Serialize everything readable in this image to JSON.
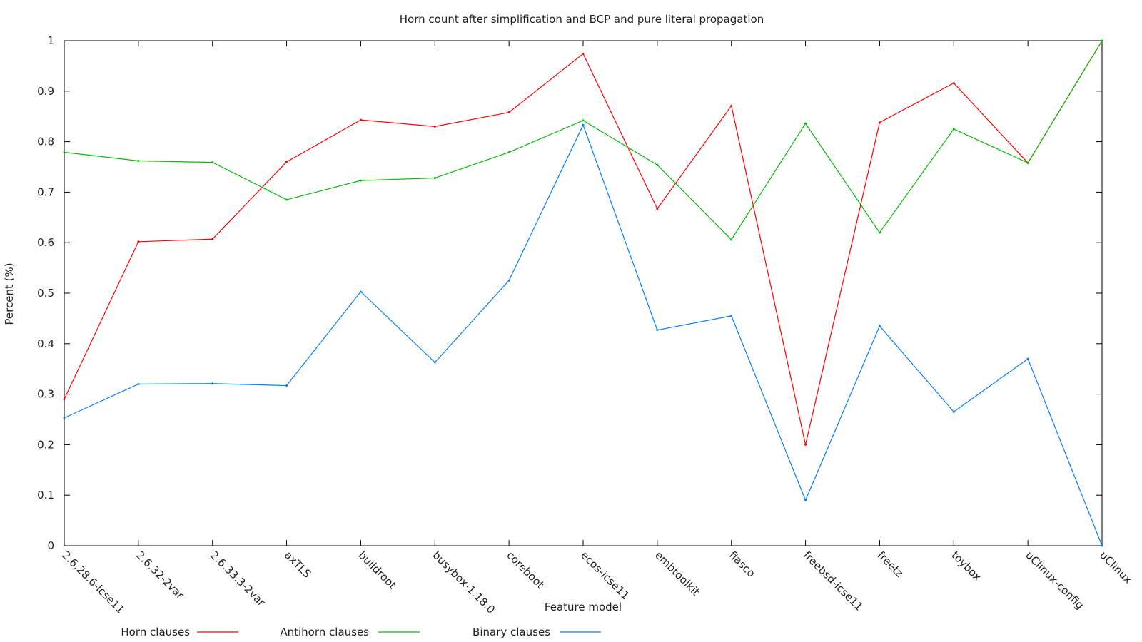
{
  "chart_data": {
    "type": "line",
    "title": "Horn count after simplification and BCP and pure literal propagation",
    "xlabel": "Feature model",
    "ylabel": "Percent (%)",
    "ylim": [
      0,
      1
    ],
    "yticks": [
      "0",
      "0.1",
      "0.2",
      "0.3",
      "0.4",
      "0.5",
      "0.6",
      "0.7",
      "0.8",
      "0.9",
      "1"
    ],
    "grid": false,
    "legend_position": "bottom",
    "categories": [
      "2.6.28.6-icse11",
      "2.6.32-2var",
      "2.6.33.3-2var",
      "axTLS",
      "buildroot",
      "busybox-1.18.0",
      "coreboot",
      "ecos-icse11",
      "embtoolkit",
      "fiasco",
      "freebsd-icse11",
      "freetz",
      "toybox",
      "uClinux-config",
      "uClinux"
    ],
    "series": [
      {
        "name": "Horn clauses",
        "color": "#ff0000",
        "values": [
          0.29,
          0.602,
          0.607,
          0.76,
          0.843,
          0.83,
          0.858,
          0.974,
          0.667,
          0.871,
          0.2,
          0.838,
          0.916,
          0.758,
          1.0
        ]
      },
      {
        "name": "Antihorn clauses",
        "color": "#00c000",
        "values": [
          0.779,
          0.762,
          0.759,
          0.685,
          0.723,
          0.728,
          0.779,
          0.842,
          0.754,
          0.606,
          0.836,
          0.62,
          0.825,
          0.758,
          1.0
        ]
      },
      {
        "name": "Binary clauses",
        "color": "#0080ff",
        "values": [
          0.253,
          0.32,
          0.321,
          0.317,
          0.503,
          0.363,
          0.525,
          0.833,
          0.427,
          0.455,
          0.09,
          0.435,
          0.265,
          0.37,
          0.0
        ]
      }
    ]
  }
}
